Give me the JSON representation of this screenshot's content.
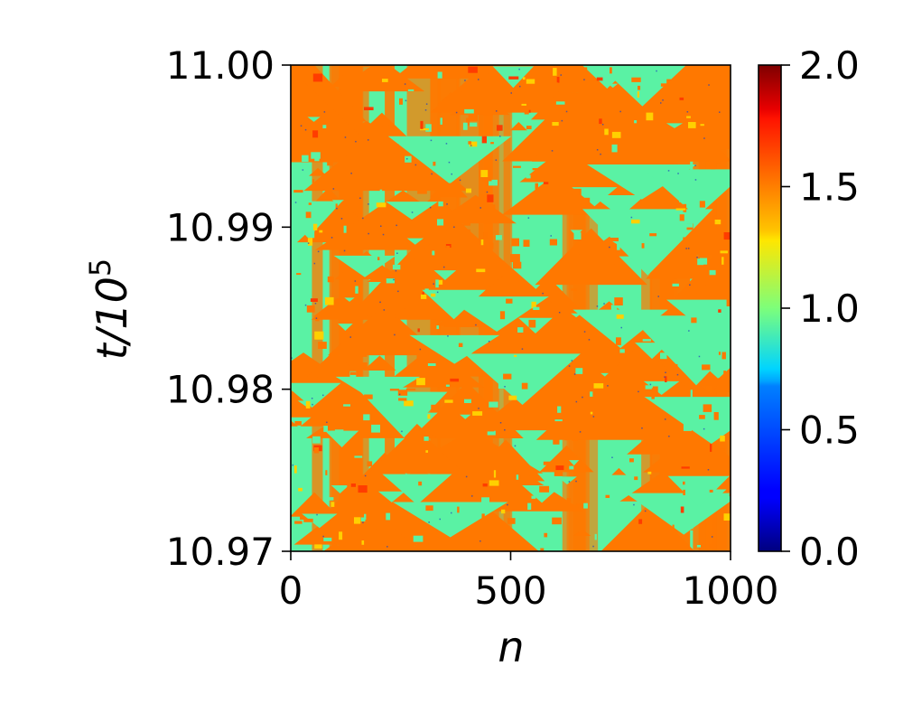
{
  "chart_data": {
    "type": "heatmap",
    "title": "",
    "xlabel": "n",
    "ylabel_base": "t/10",
    "ylabel_exponent": "5",
    "xlim": [
      0,
      1000
    ],
    "ylim": [
      10.97,
      11.0
    ],
    "x_ticks": [
      {
        "value": 0,
        "label": "0"
      },
      {
        "value": 500,
        "label": "500"
      },
      {
        "value": 1000,
        "label": "1000"
      }
    ],
    "y_ticks": [
      {
        "value": 10.97,
        "label": "10.97"
      },
      {
        "value": 10.98,
        "label": "10.98"
      },
      {
        "value": 10.99,
        "label": "10.99"
      },
      {
        "value": 11.0,
        "label": "11.00"
      }
    ],
    "colorbar": {
      "colormap": "jet",
      "range": [
        0,
        2
      ],
      "ticks": [
        {
          "value": 0.0,
          "label": "0.0"
        },
        {
          "value": 0.5,
          "label": "0.5"
        },
        {
          "value": 1.0,
          "label": "1.0"
        },
        {
          "value": 1.5,
          "label": "1.5"
        },
        {
          "value": 2.0,
          "label": "2.0"
        }
      ]
    },
    "field": {
      "dominant_levels": [
        1.0,
        1.65
      ],
      "description_colors": {
        "low_level": "#5af2a4",
        "high_level": "#ff7800"
      }
    }
  }
}
